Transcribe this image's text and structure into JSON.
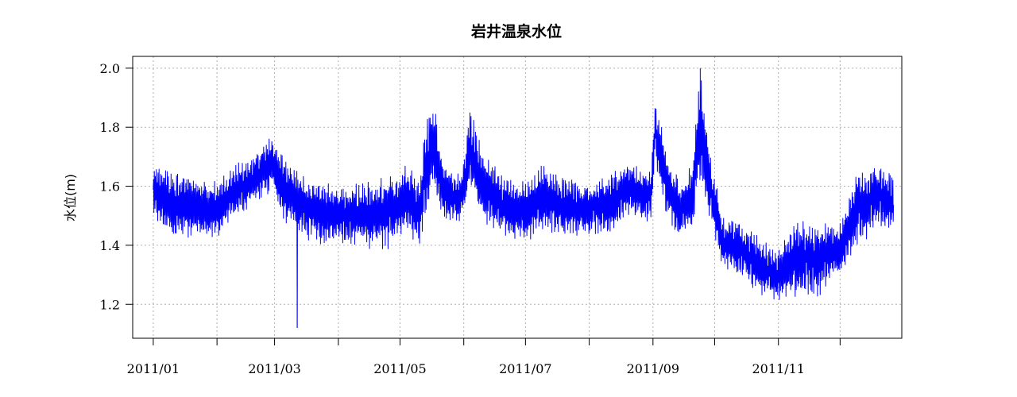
{
  "chart_data": {
    "type": "line",
    "title": "岩井温泉水位",
    "xlabel": "",
    "ylabel": "水位(m)",
    "ylim": [
      1.085,
      2.04
    ],
    "xlim": [
      "2010-12-22",
      "2011-12-31"
    ],
    "x_ticks": [
      "2011-01-01",
      "2011-02-01",
      "2011-03-01",
      "2011-04-01",
      "2011-05-01",
      "2011-06-01",
      "2011-07-01",
      "2011-08-01",
      "2011-09-01",
      "2011-10-01",
      "2011-11-01",
      "2011-12-01"
    ],
    "x_tick_labels": [
      "2011/01",
      "2011/03",
      "2011/05",
      "2011/07",
      "2011/09",
      "2011/11"
    ],
    "x_tick_label_dates": [
      "2011-01-01",
      "2011-03-01",
      "2011-05-01",
      "2011-07-01",
      "2011-09-01",
      "2011-11-01"
    ],
    "y_ticks": [
      1.2,
      1.4,
      1.6,
      1.8,
      2.0
    ],
    "y_tick_labels": [
      "1.2",
      "1.4",
      "1.6",
      "1.8",
      "2.0"
    ],
    "grid": true,
    "line_color": "#0000ff",
    "series": [
      {
        "dates": [
          "2011-01-01",
          "2011-01-10",
          "2011-01-20",
          "2011-02-01",
          "2011-02-10",
          "2011-02-20",
          "2011-02-28",
          "2011-03-05",
          "2011-03-15",
          "2011-03-25",
          "2011-04-05",
          "2011-04-15",
          "2011-04-25",
          "2011-05-05",
          "2011-05-10",
          "2011-05-13",
          "2011-05-17",
          "2011-05-22",
          "2011-05-31",
          "2011-06-04",
          "2011-06-10",
          "2011-06-20",
          "2011-07-01",
          "2011-07-10",
          "2011-07-20",
          "2011-08-01",
          "2011-08-10",
          "2011-08-20",
          "2011-08-31",
          "2011-09-02",
          "2011-09-08",
          "2011-09-14",
          "2011-09-20",
          "2011-09-24",
          "2011-09-29",
          "2011-10-05",
          "2011-10-15",
          "2011-10-25",
          "2011-10-31",
          "2011-11-10",
          "2011-11-20",
          "2011-12-01",
          "2011-12-10",
          "2011-12-20",
          "2011-12-27"
        ],
        "low": [
          1.48,
          1.42,
          1.42,
          1.42,
          1.48,
          1.54,
          1.58,
          1.48,
          1.42,
          1.4,
          1.4,
          1.38,
          1.38,
          1.45,
          1.38,
          1.48,
          1.58,
          1.48,
          1.48,
          1.58,
          1.48,
          1.43,
          1.4,
          1.45,
          1.43,
          1.43,
          1.43,
          1.5,
          1.47,
          1.68,
          1.48,
          1.42,
          1.45,
          1.6,
          1.48,
          1.32,
          1.28,
          1.22,
          1.2,
          1.22,
          1.22,
          1.3,
          1.4,
          1.45,
          1.45
        ],
        "high": [
          1.68,
          1.66,
          1.64,
          1.62,
          1.68,
          1.72,
          1.78,
          1.72,
          1.64,
          1.62,
          1.6,
          1.62,
          1.64,
          1.68,
          1.62,
          1.8,
          1.92,
          1.68,
          1.64,
          1.88,
          1.72,
          1.64,
          1.62,
          1.68,
          1.63,
          1.62,
          1.64,
          1.68,
          1.65,
          1.9,
          1.72,
          1.62,
          1.68,
          1.99,
          1.7,
          1.5,
          1.48,
          1.42,
          1.38,
          1.5,
          1.48,
          1.48,
          1.66,
          1.68,
          1.64
        ],
        "min_spike": {
          "date": "2011-03-12",
          "value": 1.12
        },
        "max_value": 2.0
      }
    ]
  }
}
